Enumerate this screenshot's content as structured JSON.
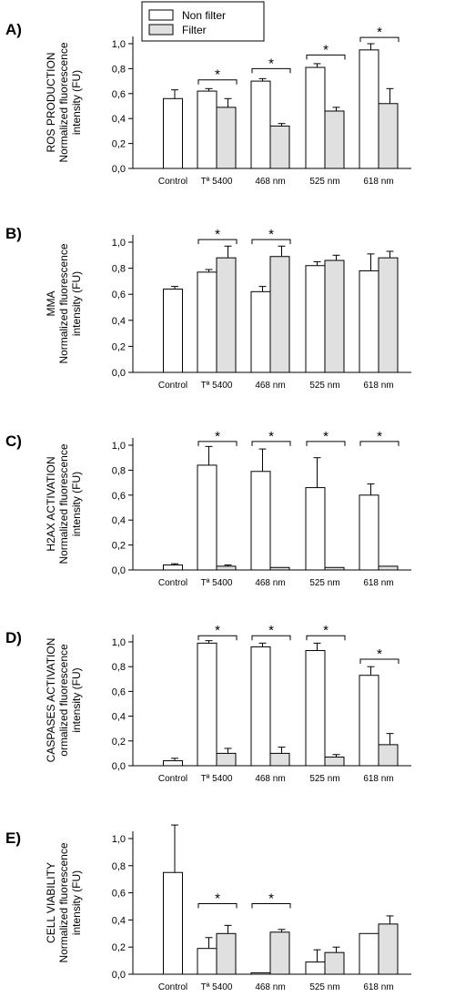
{
  "legend": {
    "items": [
      {
        "label": "Non filter",
        "color": "#ffffff"
      },
      {
        "label": "Filter",
        "color": "#e0e0e0"
      }
    ]
  },
  "axis_common": {
    "categories": [
      "Control",
      "Tª 5400",
      "468 nm",
      "525 nm",
      "618 nm"
    ],
    "ylim": [
      0,
      1.0
    ],
    "yticks": [
      "0,0",
      "0,2",
      "0,4",
      "0,6",
      "0,8",
      "1,0"
    ]
  },
  "chart_data": [
    {
      "type": "bar",
      "panel_label": "A)",
      "ylabel_lines": [
        "ROS PRODUCTION",
        "Normalized fluorescence",
        "intensity (FU)"
      ],
      "categories": [
        "Control",
        "Tª 5400",
        "468 nm",
        "525 nm",
        "618 nm"
      ],
      "ylim": [
        0,
        1.0
      ],
      "series": [
        {
          "name": "Non filter",
          "values": [
            0.56,
            0.62,
            0.7,
            0.81,
            0.95
          ],
          "errors": [
            0.07,
            0.02,
            0.02,
            0.03,
            0.05
          ]
        },
        {
          "name": "Filter",
          "values": [
            null,
            0.49,
            0.34,
            0.46,
            0.52
          ],
          "errors": [
            null,
            0.07,
            0.02,
            0.03,
            0.12
          ]
        }
      ],
      "significance": [
        {
          "category": "Tª 5400",
          "level": 0.71,
          "label": "*"
        },
        {
          "category": "468 nm",
          "level": 0.8,
          "label": "*"
        },
        {
          "category": "525 nm",
          "level": 0.91,
          "label": "*"
        },
        {
          "category": "618 nm",
          "level": 1.05,
          "label": "*"
        }
      ]
    },
    {
      "type": "bar",
      "panel_label": "B)",
      "ylabel_lines": [
        "MMA",
        "Normalized fluorescence",
        "intensity (FU)"
      ],
      "categories": [
        "Control",
        "Tª 5400",
        "468 nm",
        "525 nm",
        "618 nm"
      ],
      "ylim": [
        0,
        1.0
      ],
      "series": [
        {
          "name": "Non filter",
          "values": [
            0.64,
            0.77,
            0.62,
            0.82,
            0.78
          ],
          "errors": [
            0.02,
            0.02,
            0.04,
            0.03,
            0.13
          ]
        },
        {
          "name": "Filter",
          "values": [
            null,
            0.88,
            0.89,
            0.86,
            0.88
          ],
          "errors": [
            null,
            0.09,
            0.08,
            0.04,
            0.05
          ]
        }
      ],
      "significance": [
        {
          "category": "Tª 5400",
          "level": 1.02,
          "label": "*"
        },
        {
          "category": "468 nm",
          "level": 1.02,
          "label": "*"
        }
      ]
    },
    {
      "type": "bar",
      "panel_label": "C)",
      "ylabel_lines": [
        "H2AX ACTIVATION",
        "Normalized fluorescence",
        "intensity (FU)"
      ],
      "categories": [
        "Control",
        "Tª 5400",
        "468 nm",
        "525 nm",
        "618 nm"
      ],
      "ylim": [
        0,
        1.0
      ],
      "series": [
        {
          "name": "Non filter",
          "values": [
            0.04,
            0.84,
            0.79,
            0.66,
            0.6
          ],
          "errors": [
            0.01,
            0.15,
            0.18,
            0.24,
            0.09
          ]
        },
        {
          "name": "Filter",
          "values": [
            null,
            0.03,
            0.02,
            0.02,
            0.03
          ],
          "errors": [
            null,
            0.01,
            0.0,
            0.0,
            0.0
          ]
        }
      ],
      "significance": [
        {
          "category": "Tª 5400",
          "level": 1.03,
          "label": "*"
        },
        {
          "category": "468 nm",
          "level": 1.03,
          "label": "*"
        },
        {
          "category": "525 nm",
          "level": 1.03,
          "label": "*"
        },
        {
          "category": "618 nm",
          "level": 1.03,
          "label": "*"
        }
      ]
    },
    {
      "type": "bar",
      "panel_label": "D)",
      "ylabel_lines": [
        "CASPASES ACTIVATION",
        "ormalized fluorescence",
        "intensity (FU)"
      ],
      "categories": [
        "Control",
        "Tª 5400",
        "468 nm",
        "525 nm",
        "618 nm"
      ],
      "ylim": [
        0,
        1.0
      ],
      "series": [
        {
          "name": "Non filter",
          "values": [
            0.04,
            0.99,
            0.96,
            0.93,
            0.73
          ],
          "errors": [
            0.02,
            0.02,
            0.03,
            0.06,
            0.07
          ]
        },
        {
          "name": "Filter",
          "values": [
            null,
            0.1,
            0.1,
            0.07,
            0.17
          ],
          "errors": [
            null,
            0.04,
            0.05,
            0.02,
            0.09
          ]
        }
      ],
      "significance": [
        {
          "category": "Tª 5400",
          "level": 1.05,
          "label": "*"
        },
        {
          "category": "468 nm",
          "level": 1.05,
          "label": "*"
        },
        {
          "category": "525 nm",
          "level": 1.05,
          "label": "*"
        },
        {
          "category": "618 nm",
          "level": 0.86,
          "label": "*"
        }
      ]
    },
    {
      "type": "bar",
      "panel_label": "E)",
      "ylabel_lines": [
        "CELL VIABILITY",
        "Normalized fluorescence",
        "intensity (FU)"
      ],
      "categories": [
        "Control",
        "Tª 5400",
        "468 nm",
        "525 nm",
        "618 nm"
      ],
      "ylim": [
        0,
        1.0
      ],
      "series": [
        {
          "name": "Non filter",
          "values": [
            0.75,
            0.19,
            0.01,
            0.09,
            0.3
          ],
          "errors": [
            0.35,
            0.08,
            0.0,
            0.09,
            0.0
          ]
        },
        {
          "name": "Filter",
          "values": [
            null,
            0.3,
            0.31,
            0.16,
            0.37
          ],
          "errors": [
            null,
            0.06,
            0.02,
            0.04,
            0.06
          ]
        }
      ],
      "significance": [
        {
          "category": "Tª 5400",
          "level": 0.52,
          "label": "*"
        },
        {
          "category": "468 nm",
          "level": 0.52,
          "label": "*"
        }
      ]
    }
  ]
}
